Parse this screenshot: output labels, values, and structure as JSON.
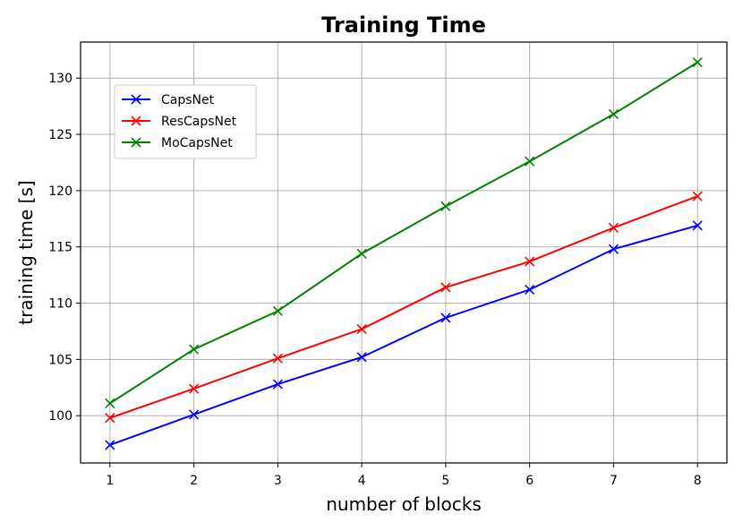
{
  "chart_data": {
    "type": "line",
    "title": "Training Time",
    "xlabel": "number of blocks",
    "ylabel": "training time [s]",
    "x": [
      1,
      2,
      3,
      4,
      5,
      6,
      7,
      8
    ],
    "xlim": [
      0.65,
      8.35
    ],
    "ylim": [
      95.8,
      133.2
    ],
    "xticks": [
      1,
      2,
      3,
      4,
      5,
      6,
      7,
      8
    ],
    "yticks": [
      100,
      105,
      110,
      115,
      120,
      125,
      130
    ],
    "grid": true,
    "legend_position": "upper-left",
    "marker": "x",
    "series": [
      {
        "name": "CapsNet",
        "color": "#0000ff",
        "values": [
          97.4,
          100.1,
          102.8,
          105.2,
          108.7,
          111.2,
          114.8,
          116.9
        ]
      },
      {
        "name": "ResCapsNet",
        "color": "#ff0000",
        "values": [
          99.8,
          102.4,
          105.1,
          107.7,
          111.4,
          113.7,
          116.7,
          119.5
        ]
      },
      {
        "name": "MoCapsNet",
        "color": "#008000",
        "values": [
          101.1,
          105.9,
          109.3,
          114.4,
          118.6,
          122.6,
          126.8,
          131.4
        ]
      }
    ]
  }
}
